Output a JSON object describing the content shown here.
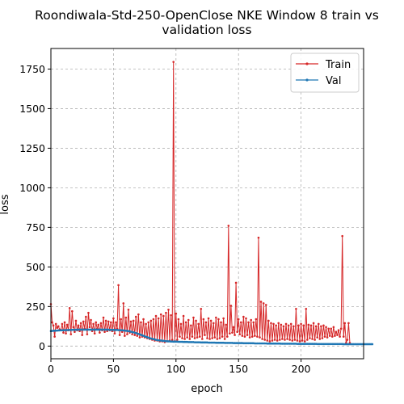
{
  "chart_data": {
    "type": "line",
    "title_lines": [
      "Roondiwala-Std-250-OpenClose NKE Window 8 train vs",
      "validation loss"
    ],
    "xlabel": "epoch",
    "ylabel": "loss",
    "xlim": [
      0,
      250
    ],
    "ylim": [
      -80,
      1880
    ],
    "x_ticks": [
      0,
      50,
      100,
      150,
      200
    ],
    "y_ticks": [
      0,
      250,
      500,
      750,
      1000,
      1250,
      1500,
      1750
    ],
    "grid": true,
    "legend_position": "top-right",
    "series": [
      {
        "name": "Train",
        "color": "#d62728",
        "y": [
          265,
          150,
          130,
          60,
          140,
          115,
          125,
          105,
          100,
          140,
          85,
          150,
          80,
          135,
          100,
          240,
          75,
          220,
          120,
          90,
          160,
          100,
          130,
          95,
          145,
          70,
          155,
          110,
          185,
          75,
          210,
          120,
          165,
          95,
          140,
          80,
          150,
          110,
          135,
          85,
          145,
          100,
          180,
          90,
          160,
          95,
          155,
          100,
          150,
          95,
          175,
          80,
          150,
          110,
          385,
          70,
          170,
          90,
          270,
          65,
          180,
          75,
          230,
          85,
          155,
          75,
          160,
          70,
          185,
          65,
          200,
          55,
          150,
          60,
          170,
          55,
          140,
          50,
          150,
          45,
          160,
          40,
          170,
          35,
          190,
          35,
          175,
          30,
          200,
          30,
          190,
          25,
          210,
          30,
          230,
          35,
          195,
          40,
          1795,
          30,
          205,
          40,
          170,
          60,
          140,
          50,
          190,
          45,
          150,
          55,
          165,
          45,
          130,
          60,
          180,
          50,
          160,
          55,
          140,
          60,
          235,
          45,
          170,
          70,
          150,
          50,
          175,
          45,
          160,
          50,
          145,
          55,
          180,
          45,
          170,
          50,
          150,
          60,
          175,
          45,
          135,
          60,
          760,
          80,
          255,
          85,
          120,
          70,
          400,
          90,
          170,
          75,
          150,
          65,
          185,
          60,
          175,
          70,
          150,
          55,
          165,
          60,
          150,
          65,
          170,
          60,
          685,
          55,
          280,
          45,
          270,
          40,
          260,
          35,
          160,
          30,
          145,
          35,
          140,
          40,
          130,
          35,
          145,
          40,
          135,
          45,
          125,
          40,
          140,
          45,
          130,
          40,
          140,
          35,
          125,
          40,
          235,
          35,
          130,
          30,
          140,
          35,
          130,
          30,
          235,
          40,
          135,
          50,
          130,
          45,
          145,
          40,
          125,
          55,
          140,
          45,
          125,
          50,
          130,
          60,
          120,
          55,
          110,
          65,
          110,
          60,
          120,
          65,
          90,
          70,
          100,
          60,
          110,
          695,
          60,
          145,
          20,
          40,
          145,
          20
        ]
      },
      {
        "name": "Val",
        "color": "#1f77b4",
        "y": [
          95,
          96,
          97,
          97,
          98,
          98,
          99,
          99,
          100,
          100,
          100,
          101,
          101,
          101,
          102,
          102,
          102,
          103,
          103,
          103,
          103,
          104,
          104,
          104,
          104,
          104,
          104,
          104,
          104,
          104,
          104,
          104,
          104,
          104,
          104,
          104,
          104,
          104,
          104,
          104,
          104,
          104,
          104,
          104,
          104,
          104,
          104,
          103,
          103,
          103,
          103,
          102,
          102,
          102,
          101,
          101,
          100,
          100,
          99,
          98,
          97,
          96,
          95,
          93,
          91,
          89,
          87,
          85,
          82,
          80,
          77,
          74,
          71,
          68,
          65,
          62,
          59,
          56,
          53,
          50,
          48,
          46,
          44,
          42,
          40,
          38,
          37,
          36,
          35,
          34,
          33,
          32,
          31,
          31,
          30,
          30,
          29,
          29,
          28,
          28,
          28,
          28,
          27,
          27,
          27,
          27,
          26,
          26,
          26,
          26,
          25,
          25,
          25,
          25,
          25,
          24,
          24,
          24,
          24,
          24,
          23,
          23,
          23,
          23,
          23,
          23,
          22,
          22,
          22,
          22,
          22,
          22,
          21,
          21,
          21,
          21,
          21,
          21,
          21,
          20,
          20,
          20,
          20,
          20,
          20,
          20,
          19,
          19,
          19,
          19,
          19,
          19,
          19,
          19,
          18,
          18,
          18,
          18,
          18,
          18,
          18,
          18,
          18,
          17,
          17,
          17,
          17,
          17,
          17,
          17,
          17,
          17,
          17,
          16,
          16,
          16,
          16,
          16,
          16,
          16,
          16,
          16,
          16,
          16,
          15,
          15,
          15,
          15,
          15,
          15,
          15,
          15,
          15,
          15,
          15,
          15,
          15,
          14,
          14,
          14,
          14,
          14,
          14,
          14,
          14,
          14,
          14,
          14,
          14,
          14,
          14,
          14,
          14,
          13,
          13,
          13,
          13,
          13,
          13,
          13,
          13,
          13,
          13,
          13,
          13,
          13,
          13,
          13,
          13,
          13,
          13,
          13,
          13,
          13,
          12,
          12,
          12,
          12,
          12,
          12,
          12,
          12,
          12,
          12,
          12,
          12,
          12,
          12,
          12,
          12,
          12,
          12,
          12,
          12,
          12,
          12,
          12,
          12
        ]
      }
    ]
  }
}
